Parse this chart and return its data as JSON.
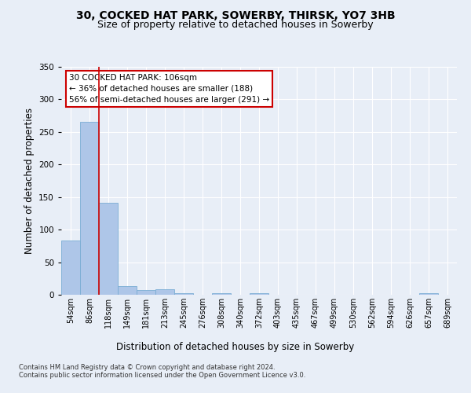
{
  "title1": "30, COCKED HAT PARK, SOWERBY, THIRSK, YO7 3HB",
  "title2": "Size of property relative to detached houses in Sowerby",
  "xlabel": "Distribution of detached houses by size in Sowerby",
  "ylabel": "Number of detached properties",
  "categories": [
    "54sqm",
    "86sqm",
    "118sqm",
    "149sqm",
    "181sqm",
    "213sqm",
    "245sqm",
    "276sqm",
    "308sqm",
    "340sqm",
    "372sqm",
    "403sqm",
    "435sqm",
    "467sqm",
    "499sqm",
    "530sqm",
    "562sqm",
    "594sqm",
    "626sqm",
    "657sqm",
    "689sqm"
  ],
  "values": [
    83,
    265,
    141,
    13,
    7,
    8,
    2,
    0,
    3,
    0,
    2,
    0,
    0,
    0,
    0,
    0,
    0,
    0,
    0,
    2,
    0
  ],
  "bar_color": "#aec6e8",
  "bar_edge_color": "#7aadd4",
  "vline_x": 1.5,
  "vline_color": "#cc0000",
  "annotation_text": "30 COCKED HAT PARK: 106sqm\n← 36% of detached houses are smaller (188)\n56% of semi-detached houses are larger (291) →",
  "annotation_box_color": "#ffffff",
  "annotation_box_edge": "#cc0000",
  "ylim": [
    0,
    350
  ],
  "yticks": [
    0,
    50,
    100,
    150,
    200,
    250,
    300,
    350
  ],
  "bg_color": "#e8eef7",
  "plot_bg_color": "#e8eef7",
  "footer_text": "Contains HM Land Registry data © Crown copyright and database right 2024.\nContains public sector information licensed under the Open Government Licence v3.0.",
  "title1_fontsize": 10,
  "title2_fontsize": 9,
  "xlabel_fontsize": 8.5,
  "ylabel_fontsize": 8.5,
  "footer_fontsize": 6.0
}
